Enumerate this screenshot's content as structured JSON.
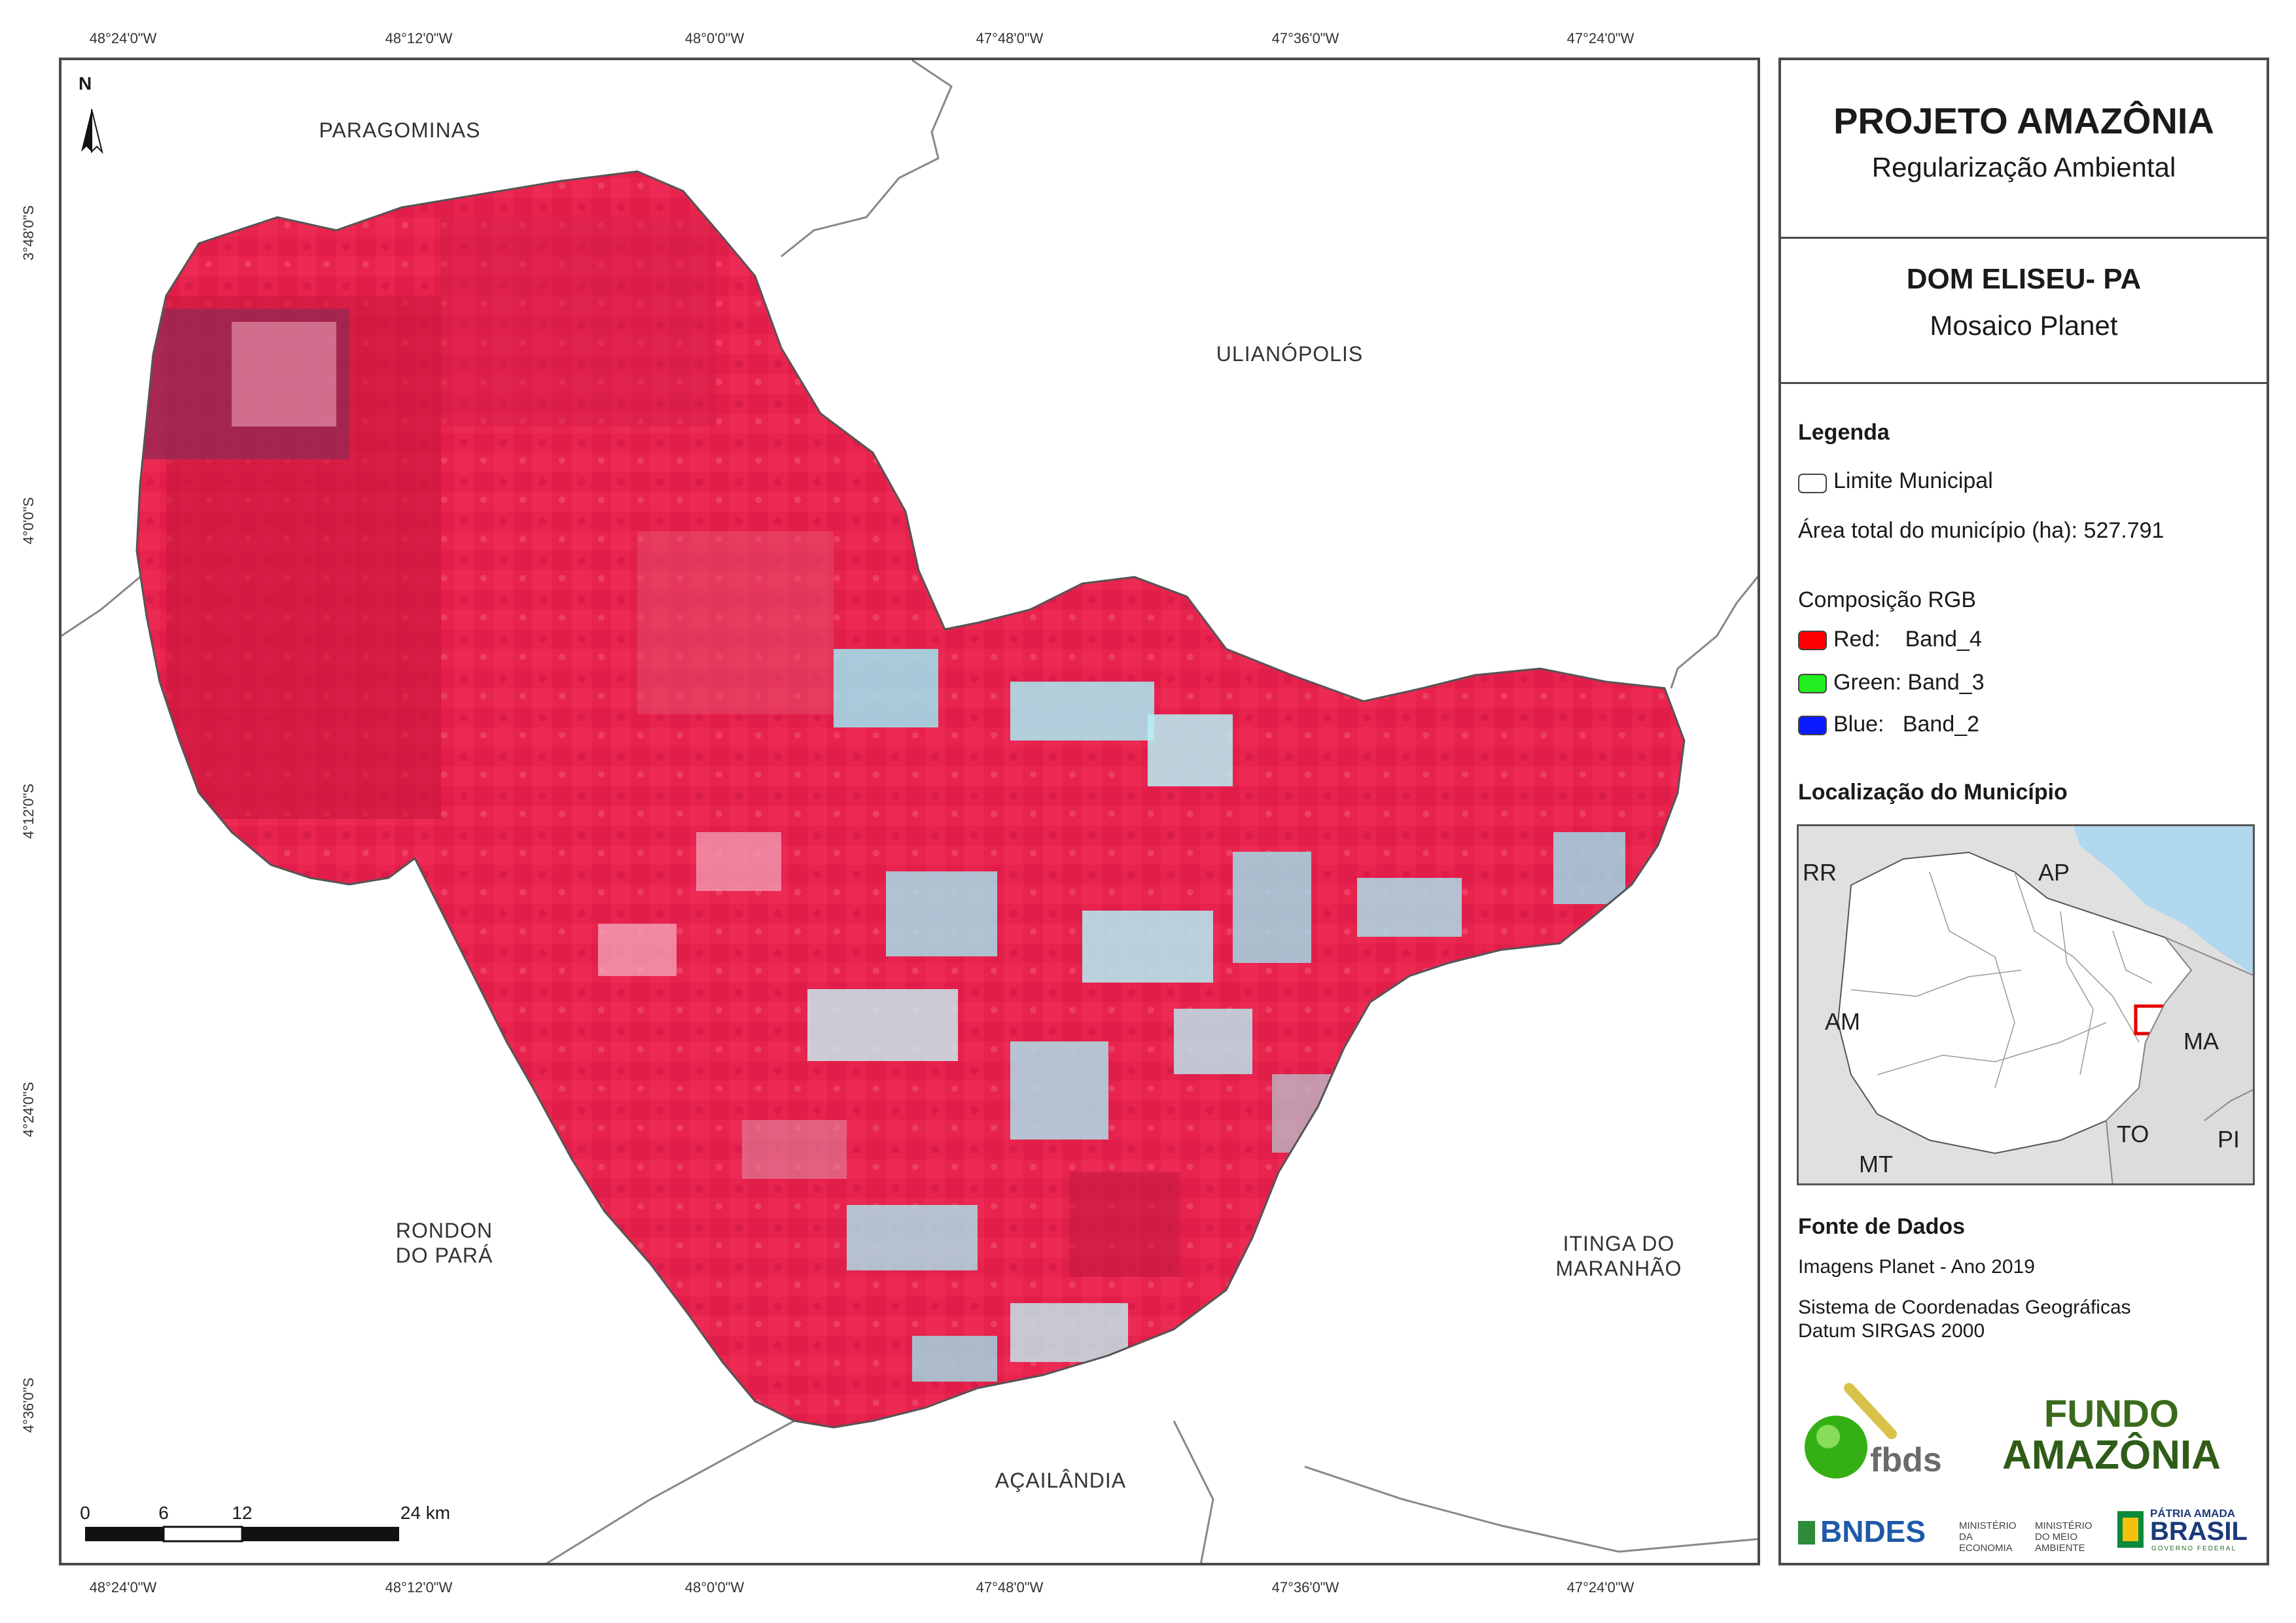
{
  "coordinates": {
    "top_ticks": [
      "48°24'0\"W",
      "48°12'0\"W",
      "48°0'0\"W",
      "47°48'0\"W",
      "47°36'0\"W",
      "47°24'0\"W"
    ],
    "bottom_ticks": [
      "48°24'0\"W",
      "48°12'0\"W",
      "48°0'0\"W",
      "47°48'0\"W",
      "47°36'0\"W",
      "47°24'0\"W"
    ],
    "left_ticks": [
      "3°48'0\"S",
      "4°0'0\"S",
      "4°12'0\"S",
      "4°24'0\"S",
      "4°36'0\"S"
    ]
  },
  "neighbors": {
    "paragominas": "PARAGOMINAS",
    "ulianopolis": "ULIANÓPOLIS",
    "rondon_line1": "RONDON",
    "rondon_line2": "DO PARÁ",
    "itinga_line1": "ITINGA DO",
    "itinga_line2": "MARANHÃO",
    "acailandia": "AÇAILÂNDIA"
  },
  "north_arrow": "N",
  "scale_bar": {
    "labels": [
      "0",
      "6",
      "12",
      "24 km"
    ]
  },
  "panel": {
    "title": "PROJETO AMAZÔNIA",
    "subtitle": "Regularização Ambiental",
    "municipality": "DOM ELISEU- PA",
    "map_type": "Mosaico Planet",
    "legend": {
      "heading": "Legenda",
      "limit_label": "Limite Municipal",
      "area_label": "Área total do município (ha): 527.791",
      "rgb_heading": "Composição RGB",
      "red_label": "Red:    Band_4",
      "green_label": "Green: Band_3",
      "blue_label": "Blue:   Band_2",
      "colors": {
        "red": "#ff0000",
        "green": "#22ee22",
        "blue": "#0a1cff"
      }
    },
    "location": {
      "heading": "Localização do Município",
      "states": [
        "RR",
        "AP",
        "AM",
        "MA",
        "TO",
        "MT",
        "PI"
      ]
    },
    "sources": {
      "heading": "Fonte de Dados",
      "images": "Imagens Planet - Ano 2019",
      "crs_line1": "Sistema de Coordenadas Geográficas",
      "crs_line2": "Datum SIRGAS 2000"
    },
    "logos": {
      "fbds": "fbds",
      "fundo_line1": "FUNDO",
      "fundo_line2": "AMAZÔNIA",
      "bndes": "BNDES",
      "min_economia": "MINISTÉRIO DA ECONOMIA",
      "min_meio_ambiente": "MINISTÉRIO DO MEIO AMBIENTE",
      "patria_line1": "PÁTRIA AMADA",
      "patria_line2": "BRASIL",
      "governo": "GOVERNO FEDERAL"
    }
  }
}
